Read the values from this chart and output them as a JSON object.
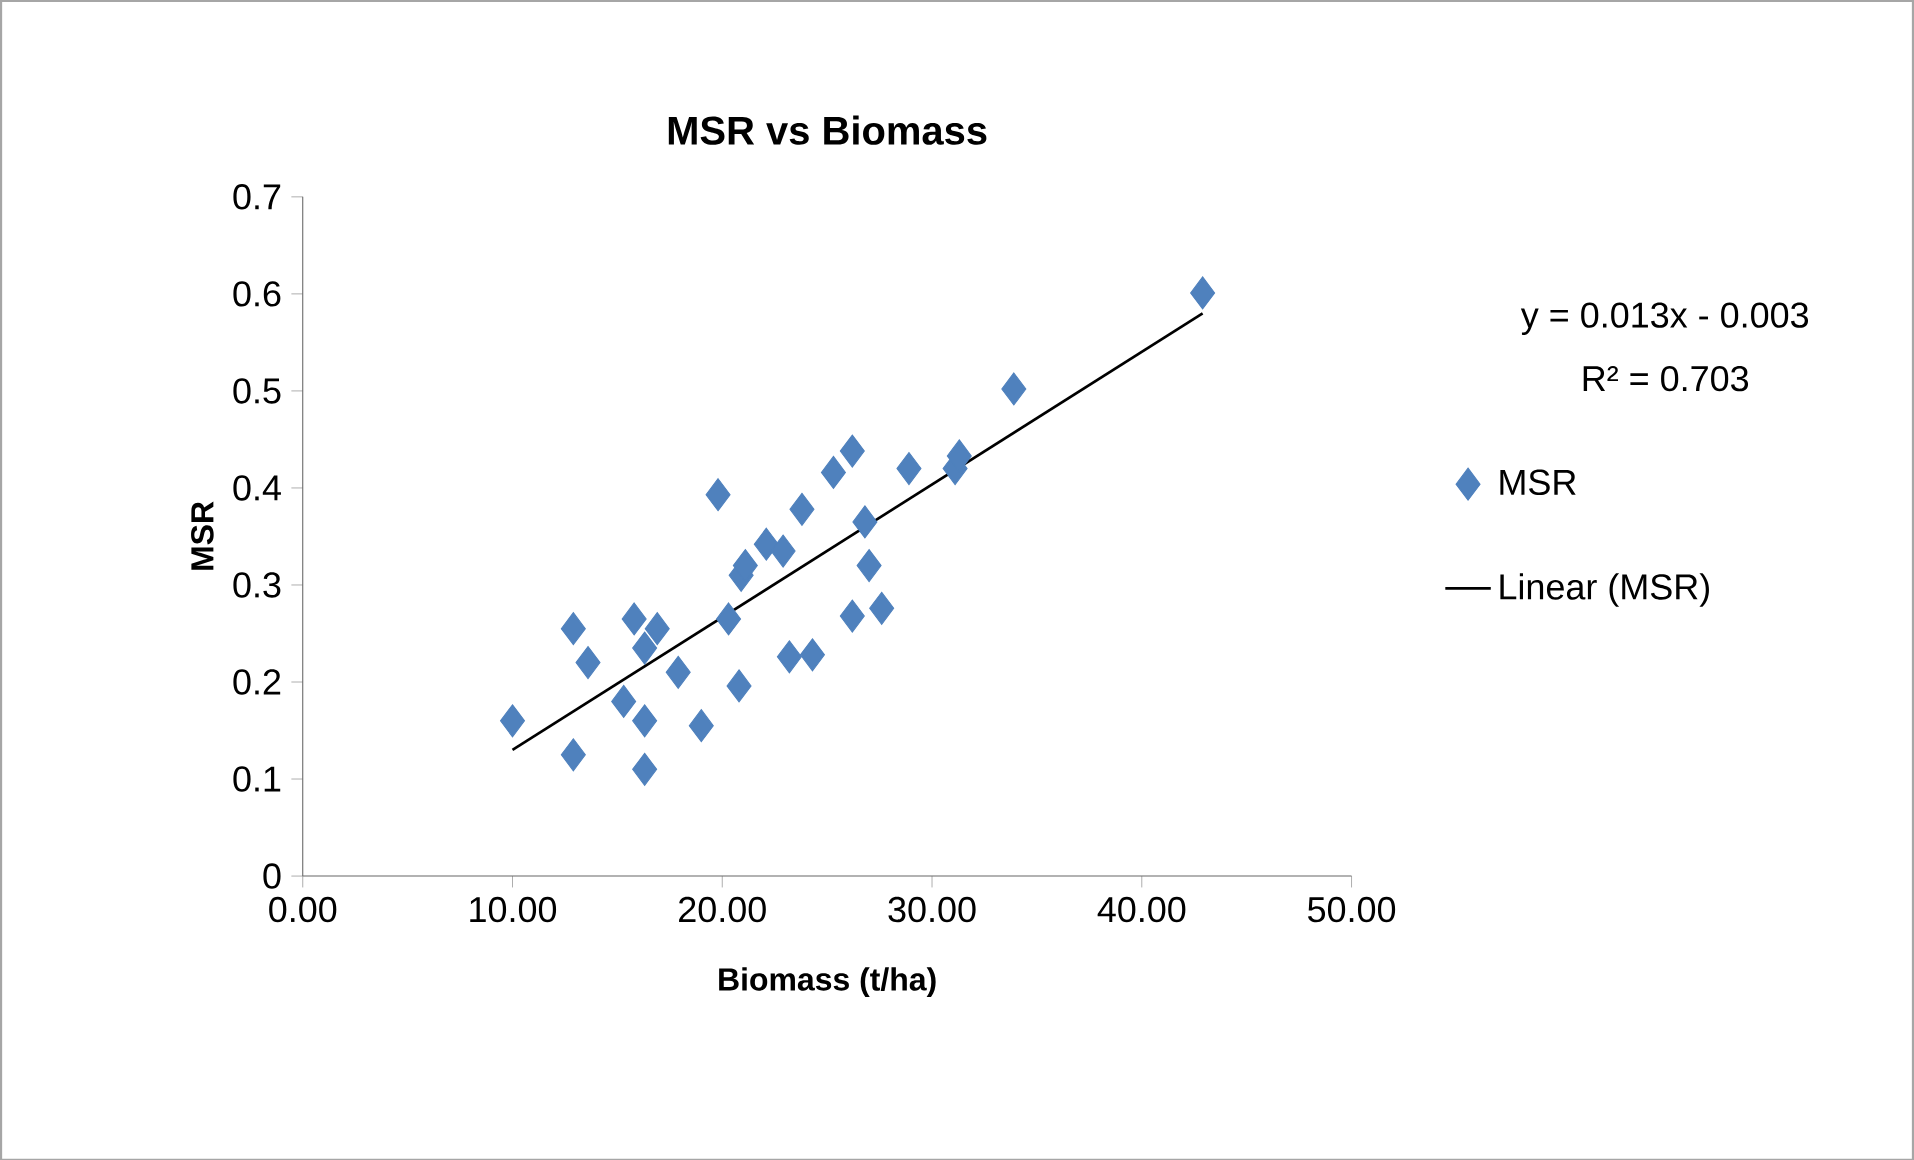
{
  "chart_data": {
    "type": "scatter",
    "title": "MSR  vs  Biomass",
    "xlabel": "Biomass (t/ha)",
    "ylabel": "MSR",
    "xlim": [
      0,
      50
    ],
    "ylim": [
      0,
      0.7
    ],
    "xticks": [
      {
        "value": 0,
        "label": "0.00"
      },
      {
        "value": 10,
        "label": "10.00"
      },
      {
        "value": 20,
        "label": "20.00"
      },
      {
        "value": 30,
        "label": "30.00"
      },
      {
        "value": 40,
        "label": "40.00"
      },
      {
        "value": 50,
        "label": "50.00"
      }
    ],
    "yticks": [
      0,
      0.1,
      0.2,
      0.3,
      0.4,
      0.5,
      0.6,
      0.7
    ],
    "legend": "right",
    "annotations": [
      "y = 0.013x - 0.003",
      "R² = 0.703"
    ],
    "series": [
      {
        "name": "MSR",
        "marker": "diamond",
        "color": "#4f81bd",
        "x": [
          10.0,
          12.9,
          12.9,
          13.6,
          15.3,
          15.8,
          16.3,
          16.3,
          16.3,
          16.9,
          17.9,
          19.0,
          19.8,
          20.3,
          20.8,
          20.9,
          21.1,
          22.1,
          22.9,
          23.2,
          23.8,
          24.3,
          25.3,
          26.2,
          26.2,
          26.8,
          27.0,
          27.6,
          28.9,
          31.1,
          31.3,
          33.9,
          42.9
        ],
        "values": [
          0.16,
          0.255,
          0.125,
          0.22,
          0.18,
          0.265,
          0.235,
          0.11,
          0.16,
          0.255,
          0.21,
          0.155,
          0.393,
          0.265,
          0.196,
          0.31,
          0.32,
          0.342,
          0.335,
          0.226,
          0.378,
          0.228,
          0.416,
          0.438,
          0.268,
          0.365,
          0.32,
          0.276,
          0.42,
          0.42,
          0.433,
          0.502,
          0.601
        ]
      },
      {
        "name": "Linear (MSR)",
        "type": "line",
        "color": "#000000",
        "line_style": "solid",
        "x": [
          10.0,
          42.9
        ],
        "values": [
          0.13,
          0.58
        ]
      }
    ]
  }
}
